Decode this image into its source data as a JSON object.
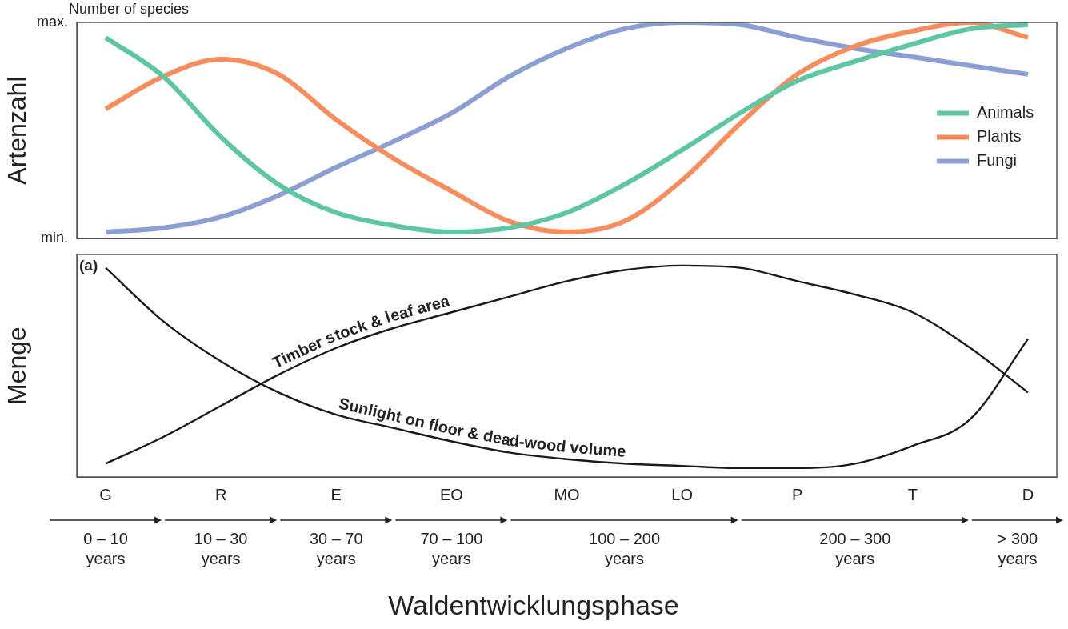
{
  "chart_data": [
    {
      "type": "line",
      "subtitle": "Number of species",
      "y_label": "Artenzahl",
      "categories": [
        "G",
        null,
        "R",
        null,
        "E",
        null,
        "EO",
        null,
        "MO",
        null,
        "LO",
        null,
        "P",
        null,
        "T",
        null,
        "D"
      ],
      "ylim": [
        0,
        100
      ],
      "yticks": [
        {
          "value": 0,
          "label": "min."
        },
        {
          "value": 100,
          "label": "max."
        }
      ],
      "tick_labels": "y",
      "grid": false,
      "legend": "right",
      "series": [
        {
          "name": "Animals",
          "color": "#5fc6a2",
          "values": [
            93,
            75,
            47,
            25,
            12,
            6,
            3,
            5,
            12,
            25,
            41,
            58,
            73,
            82,
            90,
            97,
            99
          ]
        },
        {
          "name": "Plants",
          "color": "#f68d5f",
          "values": [
            60,
            75,
            83,
            76,
            55,
            37,
            22,
            8,
            3,
            8,
            27,
            53,
            76,
            89,
            96,
            100,
            93
          ]
        },
        {
          "name": "Fungi",
          "color": "#8c9fd2",
          "values": [
            3,
            5,
            10,
            20,
            33,
            45,
            58,
            75,
            88,
            97,
            100,
            99,
            93,
            88,
            84,
            80,
            76
          ]
        }
      ]
    },
    {
      "type": "line",
      "panel_label": "(a)",
      "y_label": "Menge",
      "x_label": "Waldentwicklungsphase",
      "categories": [
        "G",
        null,
        "R",
        null,
        "E",
        null,
        "EO",
        null,
        "MO",
        null,
        "LO",
        null,
        "P",
        null,
        "T",
        null,
        "D"
      ],
      "ylim": [
        0,
        100
      ],
      "yticks": [],
      "tick_labels": "x",
      "grid": false,
      "series": [
        {
          "name": "Sunlight on floor & dead-wood volume",
          "color": "#1a1a1a",
          "values": [
            94,
            70,
            52,
            38,
            28,
            22,
            16,
            11,
            8,
            6,
            5,
            4,
            4,
            6,
            14,
            26,
            62
          ]
        },
        {
          "name": "Timber stock & leaf area",
          "color": "#1a1a1a",
          "values": [
            6,
            18,
            32,
            46,
            58,
            67,
            74,
            81,
            88,
            93,
            95,
            94,
            88,
            82,
            74,
            58,
            38
          ]
        }
      ],
      "periods": [
        {
          "label": "0 – 10 years",
          "phases": [
            "G",
            "G"
          ]
        },
        {
          "label": "10 – 30 years",
          "phases": [
            "R",
            "R"
          ]
        },
        {
          "label": "30 – 70 years",
          "phases": [
            "E",
            "E"
          ]
        },
        {
          "label": "70 – 100 years",
          "phases": [
            "EO",
            "EO"
          ]
        },
        {
          "label": "100 – 200 years",
          "phases": [
            "MO",
            "LO"
          ]
        },
        {
          "label": "200 – 300 years",
          "phases": [
            "P",
            "T"
          ]
        },
        {
          "label": "> 300 years",
          "phases": [
            "D",
            "D"
          ]
        }
      ]
    }
  ]
}
